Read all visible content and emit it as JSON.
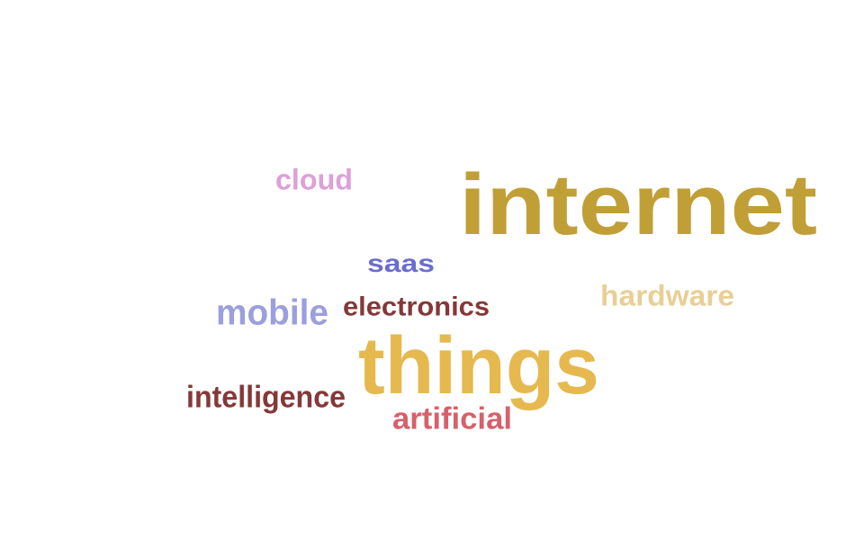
{
  "words": [
    {
      "key": "internet",
      "text": "internet",
      "color": "#c19f37"
    },
    {
      "key": "things",
      "text": "things",
      "color": "#e6b94f"
    },
    {
      "key": "hardware",
      "text": "hardware",
      "color": "#e8cf95"
    },
    {
      "key": "mobile",
      "text": "mobile",
      "color": "#9c9fdd"
    },
    {
      "key": "electronics",
      "text": "electronics",
      "color": "#843838"
    },
    {
      "key": "intelligence",
      "text": "intelligence",
      "color": "#843838"
    },
    {
      "key": "artificial",
      "text": "artificial",
      "color": "#d6616b"
    },
    {
      "key": "saas",
      "text": "saas",
      "color": "#6a6dcc"
    },
    {
      "key": "cloud",
      "text": "cloud",
      "color": "#dda0d8"
    }
  ]
}
